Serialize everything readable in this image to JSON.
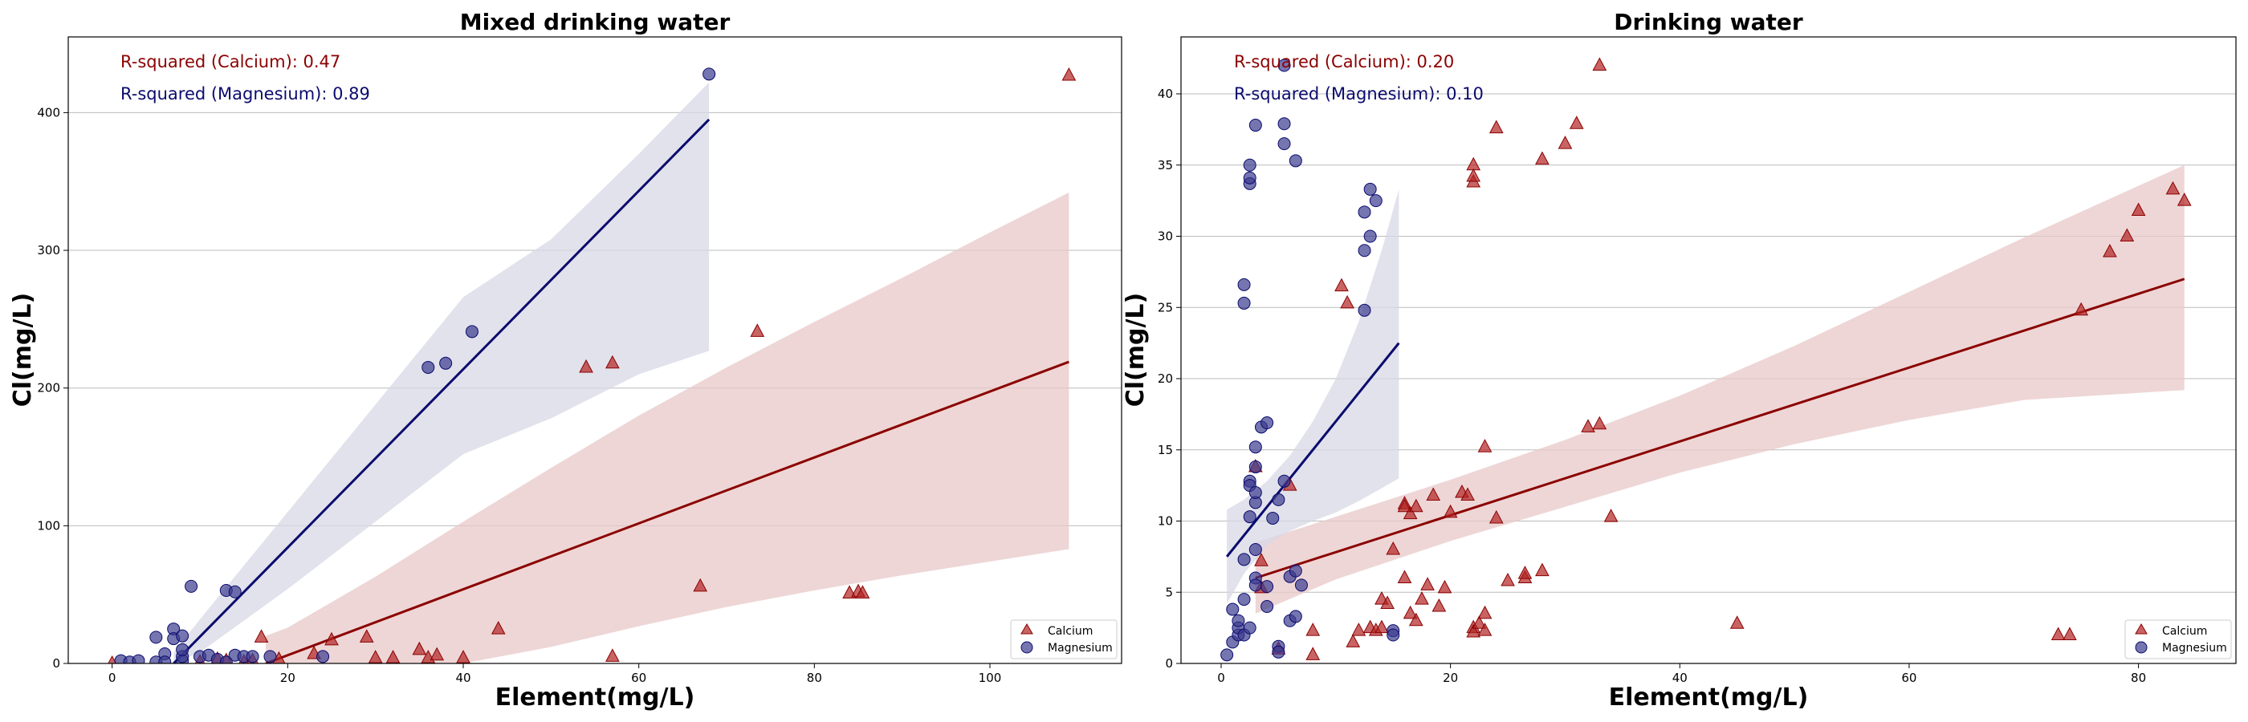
{
  "chart_data": [
    {
      "type": "scatter",
      "title": "Mixed drinking water",
      "xlabel": "Element(mg/L)",
      "ylabel": "Cl(mg/L)",
      "xlim": [
        -5,
        115
      ],
      "ylim": [
        0,
        455
      ],
      "xticks": [
        0,
        20,
        40,
        60,
        80,
        100
      ],
      "yticks": [
        0,
        100,
        200,
        300,
        400
      ],
      "grid": "horizontal",
      "legend_position": "bottom-right",
      "annotations": {
        "calcium": "R-squared (Calcium): 0.47",
        "magnesium": "R-squared (Magnesium): 0.89"
      },
      "series": [
        {
          "name": "Calcium",
          "marker": "triangle",
          "color": "#b22222",
          "line_color": "#8b0000",
          "band_color": "#e8c8c8",
          "fit": {
            "x": [
              17.5,
              109
            ],
            "y": [
              0,
              219
            ]
          },
          "band": {
            "x": [
              17.5,
              20,
              30,
              40,
              50,
              60,
              70,
              80,
              90,
              100,
              109
            ],
            "upper": [
              20,
              26,
              63,
              103,
              142,
              180,
              215,
              248,
              280,
              313,
              342
            ],
            "lower": [
              0,
              0,
              0,
              0,
              12,
              27,
              41,
              53,
              64,
              74,
              83
            ]
          },
          "points": [
            [
              0,
              0
            ],
            [
              10,
              1
            ],
            [
              12,
              3
            ],
            [
              13,
              2
            ],
            [
              15,
              1
            ],
            [
              16,
              2
            ],
            [
              17,
              19
            ],
            [
              19,
              3
            ],
            [
              23,
              7
            ],
            [
              25,
              17
            ],
            [
              29,
              19
            ],
            [
              30,
              4
            ],
            [
              32,
              4
            ],
            [
              35,
              10
            ],
            [
              36,
              4
            ],
            [
              37,
              6
            ],
            [
              40,
              4
            ],
            [
              44,
              25
            ],
            [
              54,
              215
            ],
            [
              57,
              218
            ],
            [
              57,
              5
            ],
            [
              67,
              56
            ],
            [
              73.5,
              241
            ],
            [
              84,
              51
            ],
            [
              85,
              52
            ],
            [
              85.5,
              51
            ],
            [
              109,
              427
            ]
          ]
        },
        {
          "name": "Magnesium",
          "marker": "circle",
          "color": "#3b3b8f",
          "line_color": "#0b0b6e",
          "band_color": "#d8d8e6",
          "fit": {
            "x": [
              7,
              68
            ],
            "y": [
              0,
              395
            ]
          },
          "band": {
            "x": [
              7,
              10,
              20,
              30,
              40,
              50,
              60,
              68
            ],
            "upper": [
              8,
              32,
              110,
              188,
              266,
              308,
              370,
              422
            ],
            "lower": [
              0,
              8,
              54,
              103,
              152,
              178,
              210,
              227
            ]
          },
          "points": [
            [
              1,
              2
            ],
            [
              2,
              1
            ],
            [
              3,
              2
            ],
            [
              5,
              19
            ],
            [
              5,
              1
            ],
            [
              6,
              7
            ],
            [
              6,
              1
            ],
            [
              7,
              25
            ],
            [
              7,
              18
            ],
            [
              8,
              2
            ],
            [
              8,
              5
            ],
            [
              8,
              20
            ],
            [
              8,
              10
            ],
            [
              9,
              56
            ],
            [
              10,
              5
            ],
            [
              11,
              6
            ],
            [
              12,
              3
            ],
            [
              13,
              53
            ],
            [
              13,
              1
            ],
            [
              14,
              52
            ],
            [
              14,
              6
            ],
            [
              15,
              5
            ],
            [
              16,
              5
            ],
            [
              18,
              5
            ],
            [
              24,
              5
            ],
            [
              36,
              215
            ],
            [
              38,
              218
            ],
            [
              41,
              241
            ],
            [
              68,
              428
            ]
          ]
        }
      ]
    },
    {
      "type": "scatter",
      "title": "Drinking water",
      "xlabel": "Element(mg/L)",
      "ylabel": "Cl(mg/L)",
      "xlim": [
        -3.5,
        88.5
      ],
      "ylim": [
        0,
        44
      ],
      "xticks": [
        0,
        20,
        40,
        60,
        80
      ],
      "yticks": [
        0,
        5,
        10,
        15,
        20,
        25,
        30,
        35,
        40
      ],
      "grid": "horizontal",
      "legend_position": "bottom-right",
      "annotations": {
        "calcium": "R-squared (Calcium): 0.20",
        "magnesium": "R-squared (Magnesium): 0.10"
      },
      "series": [
        {
          "name": "Calcium",
          "marker": "triangle",
          "color": "#b22222",
          "line_color": "#8b0000",
          "band_color": "#e8c8c8",
          "fit": {
            "x": [
              3,
              84
            ],
            "y": [
              6,
              27
            ]
          },
          "band": {
            "x": [
              3,
              10,
              20,
              30,
              40,
              50,
              60,
              70,
              84
            ],
            "upper": [
              8.5,
              10.3,
              12.9,
              15.7,
              18.8,
              22.3,
              26.1,
              29.9,
              35
            ],
            "lower": [
              3.5,
              5.9,
              8.6,
              11.0,
              13.4,
              15.4,
              17.1,
              18.5,
              19.2
            ]
          },
          "points": [
            [
              3,
              13.8
            ],
            [
              3.5,
              7.2
            ],
            [
              3.5,
              5.3
            ],
            [
              5,
              1.0
            ],
            [
              6,
              12.5
            ],
            [
              8,
              2.3
            ],
            [
              8,
              0.6
            ],
            [
              10.5,
              26.5
            ],
            [
              11,
              25.3
            ],
            [
              11.5,
              1.5
            ],
            [
              12,
              2.3
            ],
            [
              13,
              2.5
            ],
            [
              13.5,
              2.3
            ],
            [
              14,
              4.5
            ],
            [
              14,
              2.5
            ],
            [
              14.5,
              4.2
            ],
            [
              15,
              8.0
            ],
            [
              16,
              11.2
            ],
            [
              16,
              11.0
            ],
            [
              16.5,
              10.5
            ],
            [
              16.5,
              3.5
            ],
            [
              17,
              11.0
            ],
            [
              17,
              3.0
            ],
            [
              16,
              6.0
            ],
            [
              17.5,
              4.5
            ],
            [
              18,
              5.5
            ],
            [
              18.5,
              11.8
            ],
            [
              19,
              4.0
            ],
            [
              19.5,
              5.3
            ],
            [
              20,
              10.6
            ],
            [
              21,
              12.0
            ],
            [
              21.5,
              11.8
            ],
            [
              22,
              35.0
            ],
            [
              22,
              33.8
            ],
            [
              22,
              34.2
            ],
            [
              22,
              2.5
            ],
            [
              22,
              2.2
            ],
            [
              22.5,
              2.8
            ],
            [
              23,
              15.2
            ],
            [
              23,
              3.5
            ],
            [
              23,
              2.3
            ],
            [
              24,
              37.6
            ],
            [
              24,
              10.2
            ],
            [
              25,
              5.8
            ],
            [
              26.5,
              6.0
            ],
            [
              26.5,
              6.3
            ],
            [
              28,
              6.5
            ],
            [
              28,
              35.4
            ],
            [
              30,
              36.5
            ],
            [
              31,
              37.9
            ],
            [
              32,
              16.6
            ],
            [
              33,
              16.8
            ],
            [
              33,
              42.0
            ],
            [
              34,
              10.3
            ],
            [
              45,
              2.8
            ],
            [
              73,
              2.0
            ],
            [
              74,
              2.0
            ],
            [
              75,
              24.8
            ],
            [
              77.5,
              28.9
            ],
            [
              79,
              30.0
            ],
            [
              80,
              31.8
            ],
            [
              83,
              33.3
            ],
            [
              84,
              32.5
            ]
          ]
        },
        {
          "name": "Magnesium",
          "marker": "circle",
          "color": "#3b3b8f",
          "line_color": "#0b0b6e",
          "band_color": "#d8d8e6",
          "fit": {
            "x": [
              0.5,
              15.5
            ],
            "y": [
              7.5,
              22.5
            ]
          },
          "band": {
            "x": [
              0.5,
              2,
              4,
              6,
              8,
              10,
              12,
              14,
              15.5
            ],
            "upper": [
              10.8,
              11.5,
              12.8,
              14.6,
              17.0,
              20.0,
              24.0,
              29.0,
              33.3
            ],
            "lower": [
              4.2,
              6.3,
              8.3,
              9.3,
              10.0,
              10.6,
              11.4,
              12.3,
              13.0
            ]
          },
          "points": [
            [
              0.5,
              0.6
            ],
            [
              1,
              1.5
            ],
            [
              1,
              3.8
            ],
            [
              1.5,
              2.0
            ],
            [
              1.5,
              2.5
            ],
            [
              1.5,
              3.0
            ],
            [
              2,
              2.0
            ],
            [
              2,
              26.6
            ],
            [
              2,
              25.3
            ],
            [
              2,
              4.5
            ],
            [
              2,
              7.3
            ],
            [
              2.5,
              12.8
            ],
            [
              2.5,
              12.5
            ],
            [
              2.5,
              10.3
            ],
            [
              2.5,
              2.5
            ],
            [
              2.5,
              33.7
            ],
            [
              2.5,
              34.1
            ],
            [
              2.5,
              35.0
            ],
            [
              3,
              37.8
            ],
            [
              3,
              13.8
            ],
            [
              3,
              11.3
            ],
            [
              3,
              8.0
            ],
            [
              3,
              6.0
            ],
            [
              3,
              5.5
            ],
            [
              3,
              12.0
            ],
            [
              3,
              15.2
            ],
            [
              3.5,
              16.6
            ],
            [
              4,
              16.9
            ],
            [
              4,
              4.0
            ],
            [
              4,
              5.4
            ],
            [
              4.5,
              10.2
            ],
            [
              5,
              11.5
            ],
            [
              5,
              1.2
            ],
            [
              5,
              0.8
            ],
            [
              5.5,
              12.8
            ],
            [
              5.5,
              36.5
            ],
            [
              5.5,
              37.9
            ],
            [
              5.5,
              42.0
            ],
            [
              6,
              3.0
            ],
            [
              6,
              6.1
            ],
            [
              6.5,
              35.3
            ],
            [
              6.5,
              6.5
            ],
            [
              6.5,
              3.3
            ],
            [
              7,
              5.5
            ],
            [
              12.5,
              24.8
            ],
            [
              12.5,
              29.0
            ],
            [
              12.5,
              31.7
            ],
            [
              13,
              30.0
            ],
            [
              13,
              33.3
            ],
            [
              13.5,
              32.5
            ],
            [
              15,
              2.3
            ],
            [
              15,
              2.0
            ]
          ]
        }
      ]
    }
  ]
}
